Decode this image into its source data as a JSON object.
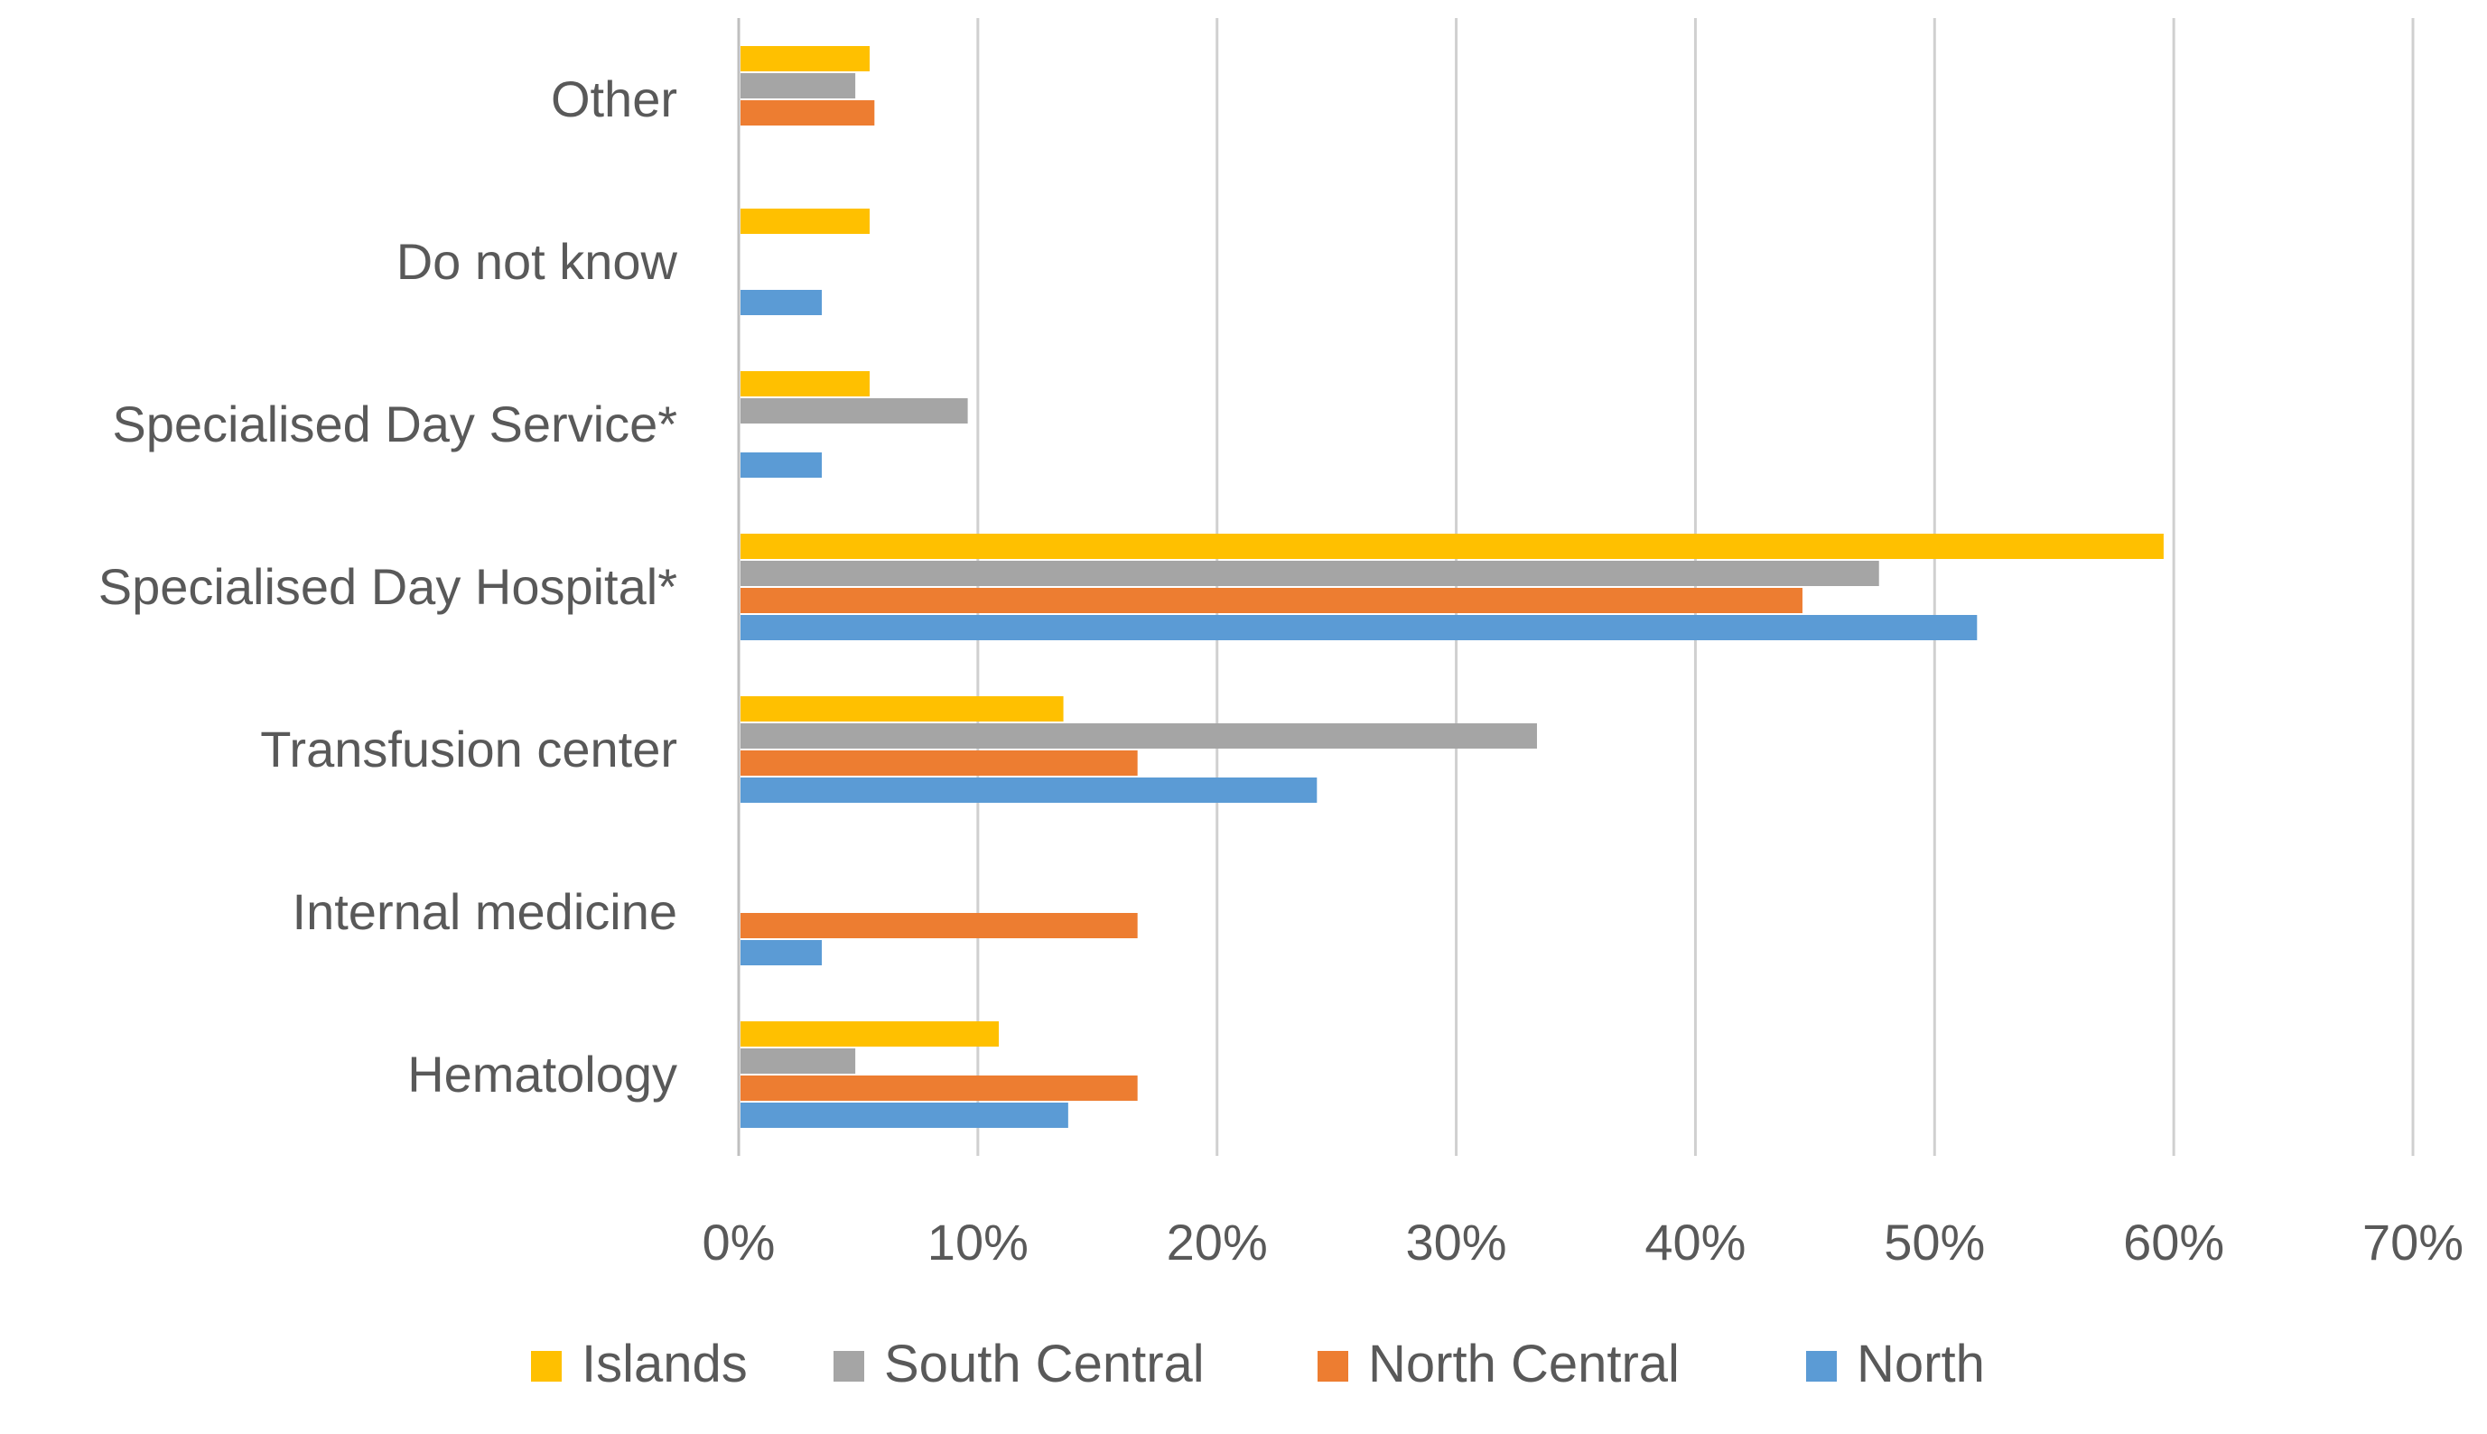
{
  "chart_data": {
    "type": "bar",
    "orientation": "horizontal",
    "title": "",
    "xlabel": "",
    "ylabel": "",
    "xlim": [
      0,
      70
    ],
    "x_tick_labels": [
      "0%",
      "10%",
      "20%",
      "30%",
      "40%",
      "50%",
      "60%",
      "70%"
    ],
    "x_ticks": [
      0,
      10,
      20,
      30,
      40,
      50,
      60,
      70
    ],
    "grid": true,
    "legend_position": "bottom",
    "categories": [
      "Hematology",
      "Internal medicine",
      "Transfusion center",
      "Specialised Day Hospital*",
      "Specialised Day Service*",
      "Do not know",
      "Other"
    ],
    "series": [
      {
        "name": "North",
        "color": "#5B9BD5",
        "values": [
          13.7,
          3.4,
          24.1,
          51.7,
          3.4,
          3.4,
          0
        ]
      },
      {
        "name": "North Central",
        "color": "#ED7D31",
        "values": [
          16.6,
          16.6,
          16.6,
          44.4,
          0,
          0,
          5.6
        ]
      },
      {
        "name": "South Central",
        "color": "#A5A5A5",
        "values": [
          4.8,
          0,
          33.3,
          47.6,
          9.5,
          0,
          4.8
        ]
      },
      {
        "name": "Islands",
        "color": "#FFC000",
        "values": [
          10.8,
          0,
          13.5,
          59.5,
          5.4,
          5.4,
          5.4
        ]
      }
    ],
    "legend_order": [
      "Islands",
      "South Central",
      "North Central",
      "North"
    ]
  }
}
